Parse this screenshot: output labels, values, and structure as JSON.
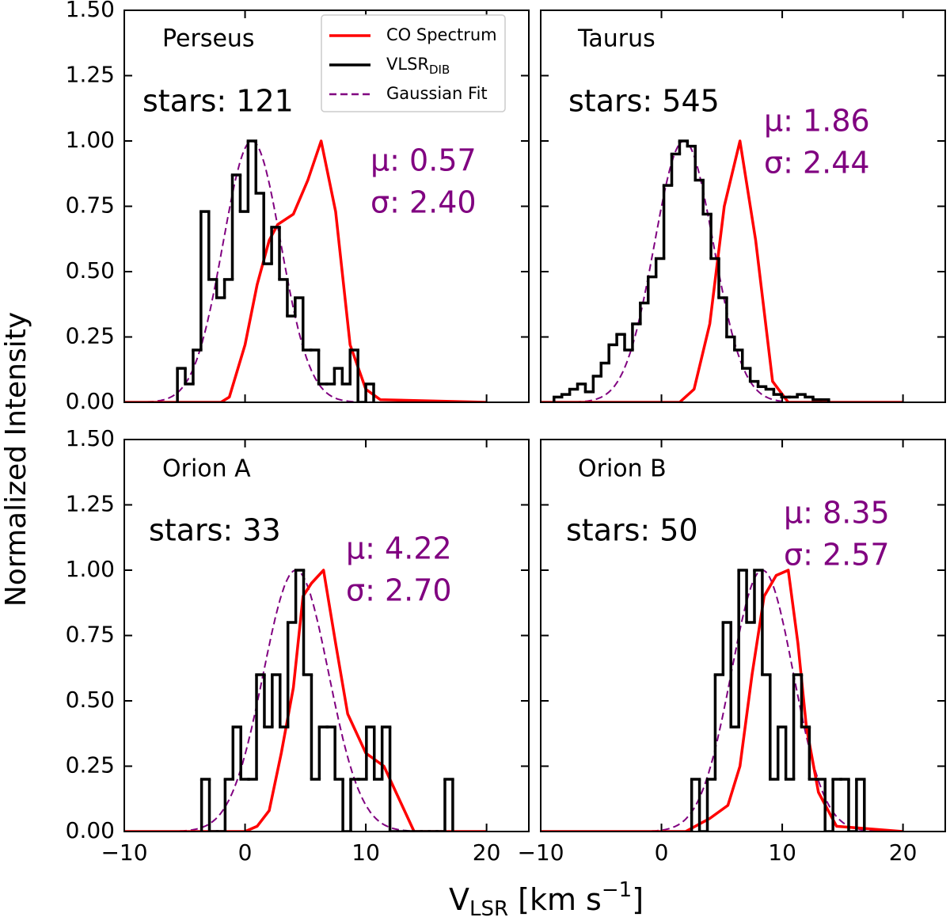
{
  "axes": {
    "xlabel": {
      "main": "V",
      "sub": "LSR",
      "mid": " [km s",
      "sup": "−1",
      "end": "]"
    },
    "ylabel": "Normalized Intensity",
    "xlim": [
      -10,
      23.5
    ],
    "ylim": [
      0,
      1.5
    ],
    "xticks": [
      {
        "value": -10,
        "label": "−10"
      },
      0,
      10,
      20
    ],
    "yticks": [
      {
        "value": 0,
        "label": "0.00"
      },
      {
        "value": 0.25,
        "label": "0.25"
      },
      {
        "value": 0.5,
        "label": "0.50"
      },
      {
        "value": 0.75,
        "label": "0.75"
      },
      {
        "value": 1,
        "label": "1.00"
      },
      {
        "value": 1.25,
        "label": "1.25"
      },
      {
        "value": 1.5,
        "label": "1.50"
      }
    ]
  },
  "legend": {
    "position": "upper right",
    "entries": [
      {
        "name": "CO Spectrum",
        "color": "#ff0000",
        "style": "solid"
      },
      {
        "name": "VLSR",
        "sub": "DIB",
        "color": "#000000",
        "style": "step"
      },
      {
        "name": "Gaussian Fit",
        "color": "#800080",
        "style": "dashed"
      }
    ]
  },
  "chart_data": [
    {
      "type": "line",
      "title": "Perseus",
      "annotation": "stars: 121",
      "fit": {
        "mu": 0.57,
        "sigma": 2.4,
        "labels": [
          "μ: 0.57",
          "σ: 2.40"
        ]
      },
      "co": {
        "x": [
          -10,
          -2,
          -1.3,
          0,
          1,
          2,
          2.7,
          4,
          5.2,
          6.3,
          7.5,
          8.7,
          10,
          11.2,
          20
        ],
        "values": [
          0,
          0,
          0.02,
          0.22,
          0.45,
          0.62,
          0.68,
          0.72,
          0.85,
          1.0,
          0.73,
          0.22,
          0.05,
          0.01,
          0
        ]
      },
      "dib": {
        "bins": [
          -5.6,
          -4.95,
          -4.3,
          -3.65,
          -3.0,
          -2.35,
          -1.7,
          -1.05,
          -0.4,
          0.25,
          0.9,
          1.55,
          2.2,
          2.85,
          3.5,
          4.15,
          4.8,
          5.45,
          6.1,
          6.75,
          7.4,
          8.05,
          8.7,
          9.35,
          10.0,
          10.65
        ],
        "values": [
          0.13,
          0.07,
          0.2,
          0.73,
          0.47,
          0.4,
          0.47,
          0.87,
          0.73,
          1.0,
          0.8,
          0.53,
          0.67,
          0.47,
          0.33,
          0.4,
          0.2,
          0.2,
          0.07,
          0.07,
          0.13,
          0.07,
          0.2,
          0,
          0.07
        ]
      }
    },
    {
      "type": "line",
      "title": "Taurus",
      "annotation": "stars: 545",
      "fit": {
        "mu": 1.86,
        "sigma": 2.44,
        "labels": [
          "μ: 1.86",
          "σ: 2.44"
        ]
      },
      "co": {
        "x": [
          -10,
          1.5,
          2.7,
          4,
          5.2,
          6.5,
          7.8,
          9.2,
          10.5,
          20
        ],
        "values": [
          0,
          0,
          0.05,
          0.3,
          0.75,
          1.0,
          0.62,
          0.08,
          0,
          0
        ]
      },
      "dib": {
        "bins": [
          -8.9,
          -8.25,
          -7.6,
          -6.95,
          -6.3,
          -5.65,
          -5.0,
          -4.35,
          -3.7,
          -3.05,
          -2.4,
          -1.75,
          -1.1,
          -0.45,
          0.2,
          0.85,
          1.5,
          2.15,
          2.8,
          3.45,
          4.1,
          4.75,
          5.4,
          6.05,
          6.7,
          7.35,
          8.0,
          8.65,
          9.3,
          9.95,
          10.6,
          11.25,
          11.9,
          12.55,
          13.2,
          13.85
        ],
        "values": [
          0.02,
          0.03,
          0.05,
          0.07,
          0.04,
          0.1,
          0.15,
          0.22,
          0.26,
          0.2,
          0.3,
          0.38,
          0.48,
          0.55,
          0.83,
          0.95,
          1.0,
          0.98,
          0.85,
          0.72,
          0.55,
          0.4,
          0.25,
          0.2,
          0.13,
          0.08,
          0.06,
          0.05,
          0.03,
          0.02,
          0.02,
          0.03,
          0.02,
          0.01,
          0.01
        ]
      }
    },
    {
      "type": "line",
      "title": "Orion A",
      "annotation": "stars: 33",
      "fit": {
        "mu": 4.22,
        "sigma": 2.7,
        "labels": [
          "μ: 4.22",
          "σ: 2.70"
        ]
      },
      "co": {
        "x": [
          -10,
          0,
          1,
          2,
          3,
          4,
          4.8,
          5.5,
          6.5,
          7.5,
          8.5,
          10,
          11.5,
          13,
          14,
          20
        ],
        "values": [
          0,
          0,
          0.02,
          0.08,
          0.3,
          0.55,
          0.9,
          0.95,
          1.0,
          0.72,
          0.45,
          0.3,
          0.25,
          0.1,
          0,
          0
        ]
      },
      "dib": {
        "bins": [
          -3.6,
          -2.95,
          -2.3,
          -1.65,
          -1.0,
          -0.35,
          0.3,
          0.95,
          1.6,
          2.25,
          2.9,
          3.55,
          4.2,
          4.85,
          5.5,
          6.15,
          6.8,
          7.45,
          8.1,
          8.75,
          9.4,
          10.05,
          10.7,
          11.35,
          12.0,
          12.65,
          13.3,
          13.95,
          14.6,
          15.25,
          15.9,
          16.55,
          17.2
        ],
        "values": [
          0.2,
          0,
          0,
          0.2,
          0.4,
          0.2,
          0.2,
          0.6,
          0.4,
          0.6,
          0.4,
          0.8,
          1.0,
          0.6,
          0.2,
          0.4,
          0.4,
          0.2,
          0,
          0.2,
          0.2,
          0.4,
          0.2,
          0.4,
          0,
          0,
          0,
          0,
          0,
          0,
          0,
          0.2
        ]
      }
    },
    {
      "type": "line",
      "title": "Orion B",
      "annotation": "stars: 50",
      "fit": {
        "mu": 8.35,
        "sigma": 2.57,
        "labels": [
          "μ: 8.35",
          "σ: 2.57"
        ]
      },
      "co": {
        "x": [
          -10,
          2,
          4,
          5.5,
          6.5,
          7.5,
          8.5,
          9.5,
          10.5,
          11.3,
          12,
          13,
          14.5,
          20
        ],
        "values": [
          0,
          0,
          0.05,
          0.1,
          0.25,
          0.6,
          0.9,
          0.98,
          1.0,
          0.72,
          0.4,
          0.15,
          0.02,
          0
        ]
      },
      "dib": {
        "bins": [
          2.5,
          3.15,
          3.8,
          4.45,
          5.1,
          5.75,
          6.4,
          7.05,
          7.7,
          8.35,
          9.0,
          9.65,
          10.3,
          10.95,
          11.6,
          12.25,
          12.9,
          13.55,
          14.2,
          14.85,
          15.5,
          16.15,
          16.8
        ],
        "values": [
          0.2,
          0,
          0.2,
          0.6,
          0.8,
          0.4,
          1.0,
          0.8,
          1.0,
          0.6,
          0.2,
          0.4,
          0.2,
          0.6,
          0.4,
          0.2,
          0.2,
          0,
          0.2,
          0.2,
          0,
          0.2
        ]
      }
    }
  ]
}
